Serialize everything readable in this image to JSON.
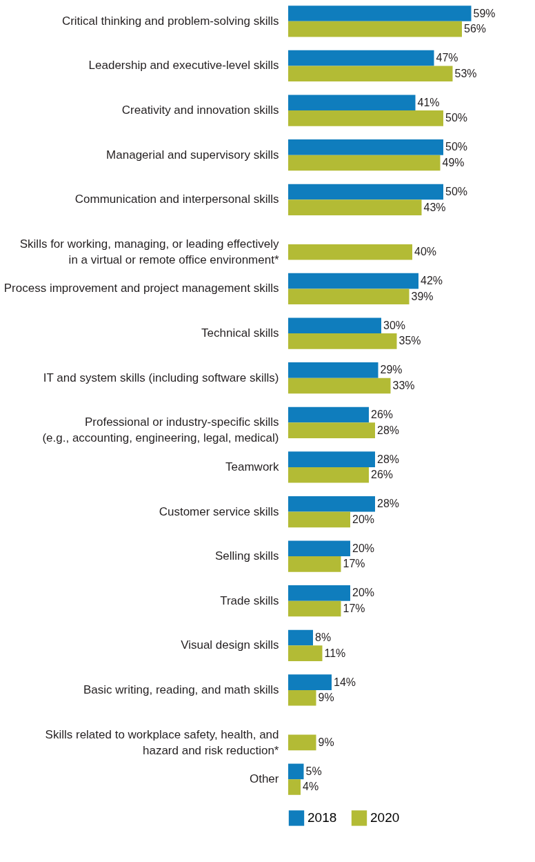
{
  "chart_data": {
    "type": "bar",
    "orientation": "horizontal",
    "legend": "bottom",
    "categories": [
      "Critical thinking and problem-solving skills",
      "Leadership and executive-level skills",
      "Creativity and innovation skills",
      "Managerial and supervisory skills",
      "Communication and interpersonal skills",
      "Skills for working, managing, or leading effectively\nin a virtual or remote office environment*",
      "Process improvement and project management skills",
      "Technical skills",
      "IT and system skills (including software skills)",
      "Professional or industry-specific skills\n(e.g., accounting, engineering, legal, medical)",
      "Teamwork",
      "Customer service skills",
      "Selling skills",
      "Trade skills",
      "Visual design skills",
      "Basic writing, reading, and math skills",
      "Skills related to workplace safety, health, and\nhazard and risk reduction*",
      "Other"
    ],
    "series": [
      {
        "name": "2018",
        "color": "#0f7dbd",
        "values": [
          59,
          47,
          41,
          50,
          50,
          null,
          42,
          30,
          29,
          26,
          28,
          28,
          20,
          20,
          8,
          14,
          null,
          5
        ],
        "value_labels": [
          "59%",
          "47%",
          "41%",
          "50%",
          "50%",
          null,
          "42%",
          "30%",
          "29%",
          "26%",
          "28%",
          "28%",
          "20%",
          "20%",
          "8%",
          "14%",
          null,
          "5%"
        ]
      },
      {
        "name": "2020",
        "color": "#b3bb35",
        "values": [
          56,
          53,
          50,
          49,
          43,
          40,
          39,
          35,
          33,
          28,
          26,
          20,
          17,
          17,
          11,
          9,
          9,
          4
        ],
        "value_labels": [
          "56%",
          "53%",
          "50%",
          "49%",
          "43%",
          "40%",
          "39%",
          "35%",
          "33%",
          "28%",
          "26%",
          "20%",
          "17%",
          "17%",
          "11%",
          "9%",
          "9%",
          "4%"
        ]
      }
    ]
  }
}
